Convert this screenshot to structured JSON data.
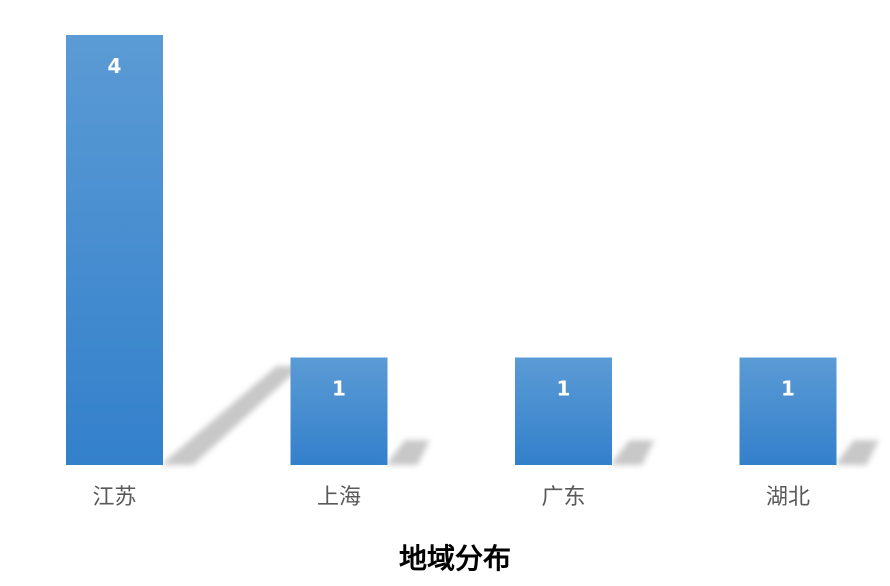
{
  "chart_data": {
    "type": "bar",
    "title": "地域分布",
    "categories": [
      "江苏",
      "上海",
      "广东",
      "湖北"
    ],
    "values": [
      4,
      1,
      1,
      1
    ],
    "ylim": [
      0,
      4
    ],
    "grid": false,
    "legend": "none",
    "data_labels": true,
    "colors": {
      "bar_top": "#5b9bd5",
      "bar_bottom": "#3380cb",
      "shadow": "#c8c8c8",
      "label": "#595959",
      "title": "#000000",
      "data_label": "#ffffff"
    }
  }
}
